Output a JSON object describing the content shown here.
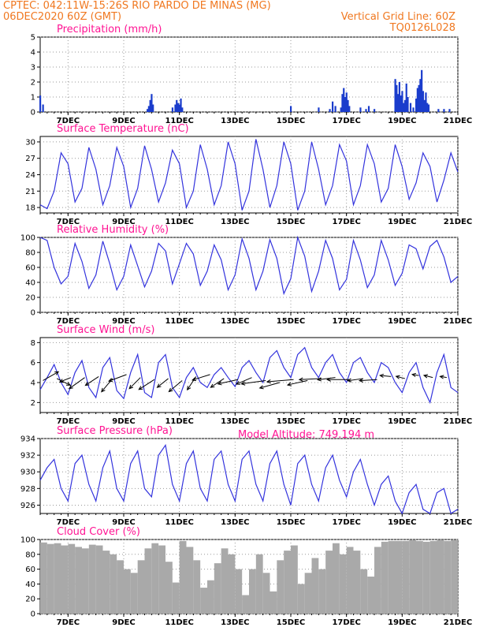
{
  "header": {
    "station_line": "CPTEC:   042:11W-15:26S   RIO PARDO DE MINAS (MG)",
    "date_line": "06DEC2020 60Z (GMT)",
    "grid_note": "Vertical Grid Line: 60Z",
    "code": "TQ0126L028"
  },
  "colors": {
    "header": "#f07820",
    "title": "#ff1493",
    "line": "#3333dd",
    "bar": "#1a3ccc",
    "cloud": "#a9a9a9"
  },
  "x_axis": {
    "tick_labels": [
      "7DEC",
      "9DEC",
      "11DEC",
      "13DEC",
      "15DEC",
      "17DEC",
      "19DEC",
      "21DEC"
    ],
    "tick_days": [
      7,
      9,
      11,
      13,
      15,
      17,
      19,
      21
    ],
    "range_days": [
      6.0,
      21.0
    ]
  },
  "chart_data": [
    {
      "id": "precip",
      "type": "bar",
      "title": "Precipitation (mm/h)",
      "ylim": [
        0,
        5
      ],
      "yticks": [
        0,
        1,
        2,
        3,
        4,
        5
      ],
      "grid": true,
      "x": [
        6.0,
        6.1,
        9.85,
        9.9,
        9.95,
        10.0,
        10.05,
        10.75,
        10.85,
        10.9,
        10.95,
        11.0,
        11.05,
        11.1,
        15.0,
        16.0,
        16.4,
        16.5,
        16.6,
        16.8,
        16.85,
        16.9,
        16.95,
        17.0,
        17.05,
        17.1,
        17.5,
        17.7,
        17.8,
        18.0,
        18.75,
        18.8,
        18.85,
        18.9,
        18.95,
        19.0,
        19.05,
        19.1,
        19.15,
        19.2,
        19.3,
        19.4,
        19.5,
        19.55,
        19.6,
        19.65,
        19.7,
        19.75,
        19.8,
        19.85,
        19.9,
        19.95,
        20.3,
        20.5,
        20.7
      ],
      "values": [
        1.1,
        0.5,
        0.2,
        0.4,
        0.8,
        1.2,
        0.5,
        0.3,
        0.5,
        0.8,
        0.6,
        0.5,
        0.9,
        0.3,
        0.4,
        0.3,
        0.2,
        0.7,
        0.4,
        0.3,
        1.2,
        1.6,
        1.0,
        1.3,
        0.8,
        0.4,
        0.3,
        0.2,
        0.4,
        0.2,
        2.2,
        1.8,
        1.2,
        2.0,
        1.1,
        1.4,
        0.6,
        0.8,
        1.9,
        1.0,
        0.6,
        0.3,
        0.9,
        1.6,
        1.8,
        2.2,
        2.8,
        1.4,
        0.8,
        1.3,
        0.6,
        0.5,
        0.2,
        0.2,
        0.2
      ]
    },
    {
      "id": "temp",
      "type": "line",
      "title": "Surface Temperature (nC)",
      "ylim": [
        17,
        31
      ],
      "yticks": [
        18,
        21,
        24,
        27,
        30
      ],
      "grid": true,
      "x": [
        6.0,
        6.25,
        6.5,
        6.75,
        7.0,
        7.25,
        7.5,
        7.75,
        8.0,
        8.25,
        8.5,
        8.75,
        9.0,
        9.25,
        9.5,
        9.75,
        10.0,
        10.25,
        10.5,
        10.75,
        11.0,
        11.25,
        11.5,
        11.75,
        12.0,
        12.25,
        12.5,
        12.75,
        13.0,
        13.25,
        13.5,
        13.75,
        14.0,
        14.25,
        14.5,
        14.75,
        15.0,
        15.25,
        15.5,
        15.75,
        16.0,
        16.25,
        16.5,
        16.75,
        17.0,
        17.25,
        17.5,
        17.75,
        18.0,
        18.25,
        18.5,
        18.75,
        19.0,
        19.25,
        19.5,
        19.75,
        20.0,
        20.25,
        20.5,
        20.75,
        21.0
      ],
      "values": [
        18.5,
        17.8,
        21.0,
        28.0,
        26.0,
        19.0,
        21.5,
        29.0,
        25.0,
        18.5,
        22.0,
        29.0,
        25.5,
        18.0,
        21.5,
        29.3,
        25.0,
        19.0,
        22.5,
        28.5,
        26.0,
        18.0,
        21.0,
        29.5,
        25.0,
        18.5,
        22.0,
        30.0,
        26.0,
        17.5,
        21.0,
        30.5,
        25.0,
        18.0,
        22.0,
        30.0,
        26.0,
        17.5,
        21.0,
        30.0,
        25.0,
        18.5,
        22.0,
        29.5,
        26.5,
        18.5,
        22.0,
        29.5,
        26.0,
        19.0,
        21.5,
        29.5,
        25.5,
        19.5,
        22.5,
        28.0,
        25.5,
        19.0,
        23.0,
        28.0,
        24.5
      ]
    },
    {
      "id": "rh",
      "type": "line",
      "title": "Relative Humidity (%)",
      "ylim": [
        0,
        100
      ],
      "yticks": [
        0,
        20,
        40,
        60,
        80,
        100
      ],
      "grid": true,
      "x": [
        6.0,
        6.25,
        6.5,
        6.75,
        7.0,
        7.25,
        7.5,
        7.75,
        8.0,
        8.25,
        8.5,
        8.75,
        9.0,
        9.25,
        9.5,
        9.75,
        10.0,
        10.25,
        10.5,
        10.75,
        11.0,
        11.25,
        11.5,
        11.75,
        12.0,
        12.25,
        12.5,
        12.75,
        13.0,
        13.25,
        13.5,
        13.75,
        14.0,
        14.25,
        14.5,
        14.75,
        15.0,
        15.25,
        15.5,
        15.75,
        16.0,
        16.25,
        16.5,
        16.75,
        17.0,
        17.25,
        17.5,
        17.75,
        18.0,
        18.25,
        18.5,
        18.75,
        19.0,
        19.25,
        19.5,
        19.75,
        20.0,
        20.25,
        20.5,
        20.75,
        21.0
      ],
      "values": [
        100,
        96,
        60,
        38,
        48,
        92,
        68,
        32,
        50,
        95,
        65,
        30,
        48,
        90,
        62,
        34,
        55,
        92,
        82,
        38,
        65,
        92,
        78,
        36,
        55,
        90,
        70,
        30,
        50,
        98,
        72,
        30,
        55,
        97,
        72,
        25,
        45,
        100,
        75,
        28,
        55,
        96,
        72,
        30,
        44,
        96,
        70,
        33,
        50,
        96,
        70,
        36,
        52,
        90,
        85,
        58,
        88,
        96,
        74,
        40,
        48
      ]
    },
    {
      "id": "wind",
      "type": "line",
      "title": "Surface Wind (m/s)",
      "ylim": [
        1,
        8.5
      ],
      "yticks": [
        2,
        4,
        6,
        8
      ],
      "grid": true,
      "x": [
        6.0,
        6.25,
        6.5,
        6.75,
        7.0,
        7.25,
        7.5,
        7.75,
        8.0,
        8.25,
        8.5,
        8.75,
        9.0,
        9.25,
        9.5,
        9.75,
        10.0,
        10.25,
        10.5,
        10.75,
        11.0,
        11.25,
        11.5,
        11.75,
        12.0,
        12.25,
        12.5,
        12.75,
        13.0,
        13.25,
        13.5,
        13.75,
        14.0,
        14.25,
        14.5,
        14.75,
        15.0,
        15.25,
        15.5,
        15.75,
        16.0,
        16.25,
        16.5,
        16.75,
        17.0,
        17.25,
        17.5,
        17.75,
        18.0,
        18.25,
        18.5,
        18.75,
        19.0,
        19.25,
        19.5,
        19.75,
        20.0,
        20.25,
        20.5,
        20.75,
        21.0
      ],
      "values": [
        3.3,
        4.5,
        5.8,
        4.0,
        2.8,
        5.0,
        6.2,
        3.5,
        2.5,
        5.5,
        6.5,
        3.2,
        2.4,
        5.0,
        6.8,
        3.0,
        2.5,
        6.0,
        6.8,
        3.5,
        2.5,
        4.5,
        5.5,
        4.0,
        3.5,
        4.8,
        5.5,
        4.5,
        3.6,
        5.5,
        6.2,
        5.0,
        4.0,
        6.5,
        7.2,
        5.5,
        4.5,
        6.8,
        7.5,
        5.5,
        4.5,
        6.0,
        6.8,
        5.0,
        4.0,
        6.0,
        6.5,
        5.0,
        4.0,
        6.0,
        5.5,
        4.0,
        3.0,
        5.0,
        6.0,
        3.5,
        2.0,
        5.0,
        6.8,
        3.5,
        3.0
      ],
      "arrows_x": [
        6.1,
        6.6,
        7.1,
        7.6,
        8.1,
        8.6,
        9.1,
        9.6,
        10.1,
        10.6,
        11.1,
        11.6,
        12.1,
        12.6,
        13.1,
        13.6,
        14.1,
        14.6,
        15.1,
        15.6,
        16.1,
        16.6,
        17.1,
        17.6,
        18.1,
        18.6,
        19.1,
        19.6,
        20.1,
        20.6
      ],
      "arrows_y": [
        4.2,
        4.4,
        4.5,
        4.5,
        4.6,
        4.4,
        4.8,
        4.5,
        4.3,
        4.4,
        4.2,
        4.6,
        4.8,
        4.4,
        4.3,
        4.5,
        4.2,
        4.0,
        4.3,
        4.2,
        4.4,
        4.5,
        4.3,
        4.4,
        4.3,
        4.6,
        4.4,
        4.7,
        4.5,
        4.5
      ],
      "arrows_u": [
        1.4,
        1.2,
        -1.0,
        -1.4,
        -1.2,
        -1.0,
        -1.6,
        -1.0,
        -1.4,
        -1.0,
        -1.2,
        -0.8,
        -1.6,
        -1.2,
        -1.8,
        -1.4,
        -2.2,
        -1.8,
        -2.4,
        -1.8,
        -2.0,
        -1.6,
        -2.0,
        -1.4,
        -1.6,
        -1.0,
        -0.8,
        -0.6,
        -0.8,
        -0.6
      ],
      "arrows_v": [
        0.8,
        -0.6,
        -0.4,
        -1.0,
        -0.8,
        -1.2,
        -0.6,
        -1.0,
        -0.9,
        -0.8,
        -1.0,
        -1.2,
        -0.5,
        -0.8,
        -0.4,
        -0.6,
        -0.3,
        -0.5,
        -0.2,
        -0.4,
        -0.1,
        -0.2,
        0.0,
        -0.2,
        -0.1,
        0.1,
        0.2,
        0.1,
        0.2,
        0.1
      ]
    },
    {
      "id": "pres",
      "type": "line",
      "title": "Surface Pressure (hPa)",
      "altitude_text": "Model Altitude: 749.194 m",
      "ylim": [
        925,
        934
      ],
      "yticks": [
        926,
        928,
        930,
        932,
        934
      ],
      "grid": true,
      "x": [
        6.0,
        6.25,
        6.5,
        6.75,
        7.0,
        7.25,
        7.5,
        7.75,
        8.0,
        8.25,
        8.5,
        8.75,
        9.0,
        9.25,
        9.5,
        9.75,
        10.0,
        10.25,
        10.5,
        10.75,
        11.0,
        11.25,
        11.5,
        11.75,
        12.0,
        12.25,
        12.5,
        12.75,
        13.0,
        13.25,
        13.5,
        13.75,
        14.0,
        14.25,
        14.5,
        14.75,
        15.0,
        15.25,
        15.5,
        15.75,
        16.0,
        16.25,
        16.5,
        16.75,
        17.0,
        17.25,
        17.5,
        17.75,
        18.0,
        18.25,
        18.5,
        18.75,
        19.0,
        19.25,
        19.5,
        19.75,
        20.0,
        20.25,
        20.5,
        20.75,
        21.0
      ],
      "values": [
        929.0,
        930.5,
        931.5,
        928.0,
        926.5,
        931.0,
        932.0,
        928.5,
        926.5,
        930.5,
        932.5,
        928.0,
        926.5,
        931.0,
        932.5,
        928.0,
        927.0,
        932.0,
        933.2,
        928.5,
        926.5,
        931.0,
        932.5,
        928.0,
        926.5,
        931.5,
        932.5,
        928.5,
        926.5,
        931.5,
        932.5,
        928.5,
        926.5,
        931.0,
        932.5,
        928.5,
        926.0,
        931.0,
        932.0,
        928.5,
        926.5,
        930.5,
        932.0,
        929.0,
        927.0,
        930.0,
        931.5,
        928.5,
        926.0,
        928.5,
        929.5,
        926.5,
        925.0,
        927.5,
        928.5,
        925.5,
        925.0,
        927.5,
        928.0,
        925.0,
        925.5
      ]
    },
    {
      "id": "cloud",
      "type": "bar",
      "title": "Cloud Cover (%)",
      "ylim": [
        0,
        100
      ],
      "yticks": [
        0,
        20,
        40,
        60,
        80,
        100
      ],
      "grid": true,
      "x": [
        6.125,
        6.375,
        6.625,
        6.875,
        7.125,
        7.375,
        7.625,
        7.875,
        8.125,
        8.375,
        8.625,
        8.875,
        9.125,
        9.375,
        9.625,
        9.875,
        10.125,
        10.375,
        10.625,
        10.875,
        11.125,
        11.375,
        11.625,
        11.875,
        12.125,
        12.375,
        12.625,
        12.875,
        13.125,
        13.375,
        13.625,
        13.875,
        14.125,
        14.375,
        14.625,
        14.875,
        15.125,
        15.375,
        15.625,
        15.875,
        16.125,
        16.375,
        16.625,
        16.875,
        17.125,
        17.375,
        17.625,
        17.875,
        18.125,
        18.375,
        18.625,
        18.875,
        19.125,
        19.375,
        19.625,
        19.875,
        20.125,
        20.375,
        20.625,
        20.875
      ],
      "values": [
        96,
        94,
        95,
        92,
        94,
        90,
        88,
        93,
        92,
        85,
        80,
        72,
        60,
        55,
        72,
        88,
        95,
        92,
        70,
        42,
        98,
        90,
        72,
        35,
        45,
        68,
        88,
        80,
        60,
        25,
        60,
        80,
        55,
        30,
        72,
        85,
        92,
        40,
        55,
        75,
        60,
        85,
        95,
        80,
        90,
        85,
        60,
        50,
        90,
        97,
        98,
        98,
        98,
        99,
        98,
        97,
        98,
        99,
        98,
        99
      ]
    }
  ]
}
